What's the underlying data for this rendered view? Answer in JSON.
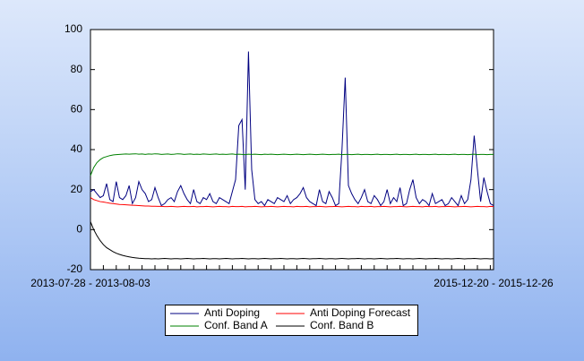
{
  "chart_data": {
    "type": "line",
    "categories": [
      "2013-07-28 - 2013-08-03",
      null,
      null,
      null,
      null,
      null,
      null,
      null,
      null,
      null,
      null,
      null,
      null,
      null,
      null,
      null,
      null,
      null,
      null,
      null,
      null,
      null,
      null,
      null,
      null,
      null,
      null,
      null,
      null,
      null,
      null,
      null,
      null,
      null,
      null,
      null,
      null,
      null,
      null,
      null,
      null,
      null,
      null,
      null,
      null,
      null,
      null,
      null,
      null,
      null,
      null,
      null,
      null,
      null,
      null,
      null,
      null,
      null,
      null,
      null,
      null,
      null,
      null,
      null,
      null,
      null,
      null,
      null,
      null,
      null,
      null,
      null,
      null,
      null,
      null,
      null,
      null,
      null,
      null,
      null,
      null,
      null,
      null,
      null,
      null,
      null,
      null,
      null,
      null,
      null,
      null,
      null,
      null,
      null,
      null,
      null,
      null,
      null,
      null,
      null,
      null,
      null,
      null,
      null,
      null,
      null,
      null,
      null,
      null,
      null,
      null,
      null,
      null,
      null,
      null,
      null,
      null,
      null,
      null,
      null,
      null,
      null,
      null,
      null,
      null,
      "2015-12-20 - 2015-12-26"
    ],
    "series": [
      {
        "name": "Anti Doping",
        "color": "#000080",
        "values": [
          19,
          20,
          18,
          16,
          17,
          23,
          15,
          14,
          24,
          16,
          15,
          17,
          22,
          13,
          16,
          24,
          20,
          18,
          14,
          15,
          21,
          16,
          12,
          13,
          15,
          16,
          14,
          19,
          22,
          18,
          15,
          13,
          20,
          14,
          13,
          16,
          15,
          18,
          14,
          13,
          16,
          15,
          14,
          13,
          19,
          25,
          52,
          55,
          20,
          89,
          30,
          15,
          13,
          14,
          12,
          15,
          14,
          13,
          16,
          15,
          14,
          17,
          13,
          15,
          16,
          18,
          21,
          16,
          14,
          13,
          12,
          20,
          14,
          13,
          19,
          16,
          12,
          13,
          40,
          76,
          22,
          18,
          15,
          13,
          16,
          20,
          14,
          13,
          17,
          15,
          12,
          14,
          20,
          13,
          16,
          14,
          21,
          12,
          13,
          20,
          25,
          16,
          13,
          15,
          14,
          12,
          18,
          13,
          14,
          15,
          12,
          13,
          16,
          14,
          12,
          17,
          13,
          15,
          25,
          47,
          30,
          14,
          26,
          19,
          13,
          12
        ]
      },
      {
        "name": "Anti Doping Forecast",
        "color": "#ff0000",
        "values": [
          16,
          15,
          14.5,
          14,
          13.8,
          13.5,
          13.2,
          13,
          12.8,
          12.6,
          12.5,
          12.4,
          12.3,
          12.2,
          12.1,
          12,
          11.9,
          11.8,
          11.8,
          11.7,
          11.7,
          11.6,
          11.6,
          11.5,
          11.5,
          11.6,
          11.5,
          11.4,
          11.5,
          11.6,
          11.5,
          11.5,
          11.6,
          11.4,
          11.5,
          11.5,
          11.6,
          11.5,
          11.4,
          11.5,
          11.6,
          11.5,
          11.5,
          11.4,
          11.6,
          11.5,
          11.5,
          11.6,
          11.4,
          11.5,
          11.5,
          11.6,
          11.5,
          11.4,
          11.5,
          11.5,
          11.6,
          11.5,
          11.4,
          11.5,
          11.6,
          11.5,
          11.5,
          11.4,
          11.6,
          11.5,
          11.5,
          11.6,
          11.4,
          11.5,
          11.5,
          11.6,
          11.5,
          11.4,
          11.5,
          11.5,
          11.6,
          11.5,
          11.4,
          11.5,
          11.6,
          11.5,
          11.5,
          11.4,
          11.6,
          11.5,
          11.5,
          11.6,
          11.4,
          11.5,
          11.5,
          11.6,
          11.5,
          11.4,
          11.5,
          11.5,
          11.6,
          11.5,
          11.4,
          11.5,
          11.6,
          11.5,
          11.5,
          11.4,
          11.6,
          11.5,
          11.5,
          11.6,
          11.4,
          11.5,
          11.5,
          11.6,
          11.5,
          11.4,
          11.5,
          11.5,
          11.6,
          11.5,
          11.4,
          11.5,
          11.6,
          11.5,
          11.5,
          11.4,
          11.6,
          11.5
        ]
      },
      {
        "name": "Conf. Band A",
        "color": "#008000",
        "values": [
          27,
          31,
          33.5,
          35,
          36,
          36.5,
          37,
          37.3,
          37.5,
          37.6,
          37.7,
          37.8,
          37.7,
          37.8,
          37.9,
          37.7,
          37.8,
          37.6,
          37.8,
          37.7,
          37.9,
          37.8,
          37.6,
          37.7,
          37.8,
          37.6,
          37.7,
          37.9,
          37.8,
          37.6,
          37.7,
          37.8,
          37.6,
          37.7,
          37.6,
          37.8,
          37.7,
          37.6,
          37.7,
          37.8,
          37.6,
          37.7,
          37.6,
          37.7,
          37.8,
          37.6,
          37.7,
          37.6,
          37.5,
          37.7,
          37.6,
          37.7,
          37.6,
          37.5,
          37.7,
          37.6,
          37.7,
          37.6,
          37.5,
          37.6,
          37.7,
          37.6,
          37.5,
          37.6,
          37.7,
          37.6,
          37.5,
          37.6,
          37.7,
          37.6,
          37.5,
          37.6,
          37.7,
          37.6,
          37.5,
          37.6,
          37.6,
          37.7,
          37.5,
          37.6,
          37.6,
          37.5,
          37.6,
          37.7,
          37.5,
          37.6,
          37.6,
          37.5,
          37.6,
          37.7,
          37.5,
          37.6,
          37.6,
          37.5,
          37.6,
          37.7,
          37.5,
          37.6,
          37.6,
          37.5,
          37.6,
          37.7,
          37.5,
          37.6,
          37.6,
          37.5,
          37.6,
          37.7,
          37.5,
          37.6,
          37.6,
          37.5,
          37.6,
          37.7,
          37.5,
          37.6,
          37.6,
          37.5,
          37.6,
          37.7,
          37.5,
          37.6,
          37.6,
          37.5,
          37.6,
          37.6
        ]
      },
      {
        "name": "Conf. Band B",
        "color": "#000000",
        "values": [
          4,
          0,
          -3,
          -5.5,
          -7.5,
          -9,
          -10,
          -11,
          -11.8,
          -12.4,
          -12.9,
          -13.3,
          -13.6,
          -13.9,
          -14.1,
          -14.3,
          -14.4,
          -14.5,
          -14.5,
          -14.6,
          -14.5,
          -14.6,
          -14.5,
          -14.4,
          -14.5,
          -14.6,
          -14.5,
          -14.5,
          -14.6,
          -14.5,
          -14.4,
          -14.5,
          -14.6,
          -14.5,
          -14.5,
          -14.4,
          -14.5,
          -14.6,
          -14.5,
          -14.5,
          -14.6,
          -14.5,
          -14.4,
          -14.5,
          -14.6,
          -14.5,
          -14.5,
          -14.4,
          -14.5,
          -14.6,
          -14.5,
          -14.5,
          -14.6,
          -14.5,
          -14.4,
          -14.5,
          -14.6,
          -14.5,
          -14.5,
          -14.4,
          -14.5,
          -14.6,
          -14.5,
          -14.5,
          -14.6,
          -14.5,
          -14.4,
          -14.5,
          -14.6,
          -14.5,
          -14.5,
          -14.4,
          -14.5,
          -14.6,
          -14.5,
          -14.5,
          -14.6,
          -14.5,
          -14.4,
          -14.5,
          -14.6,
          -14.5,
          -14.5,
          -14.4,
          -14.5,
          -14.6,
          -14.5,
          -14.5,
          -14.6,
          -14.5,
          -14.4,
          -14.5,
          -14.6,
          -14.5,
          -14.5,
          -14.4,
          -14.5,
          -14.6,
          -14.5,
          -14.5,
          -14.6,
          -14.5,
          -14.4,
          -14.5,
          -14.6,
          -14.5,
          -14.5,
          -14.4,
          -14.5,
          -14.6,
          -14.5,
          -14.5,
          -14.6,
          -14.5,
          -14.4,
          -14.5,
          -14.6,
          -14.5,
          -14.5,
          -14.4,
          -14.5,
          -14.6,
          -14.5,
          -14.5,
          -14.6,
          -14.5
        ]
      }
    ],
    "ylim": [
      -20,
      100
    ],
    "yticks": [
      -20,
      0,
      20,
      40,
      60,
      80,
      100
    ],
    "grid": false
  }
}
